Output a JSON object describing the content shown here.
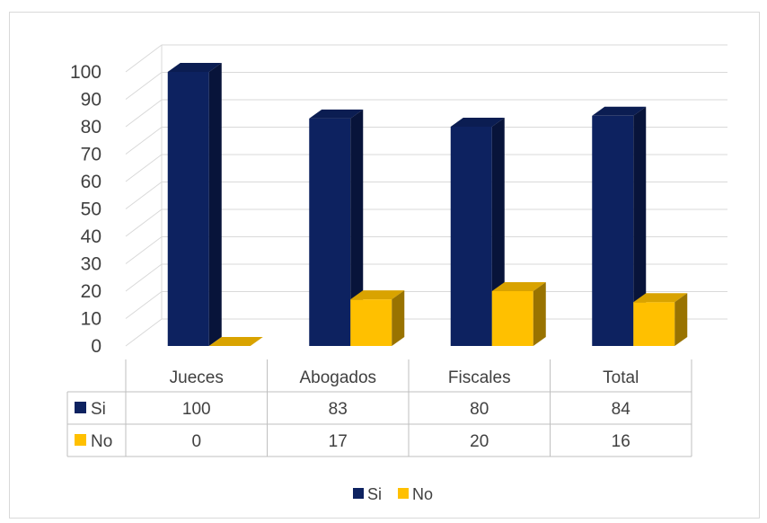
{
  "chart_data": {
    "type": "bar",
    "categories": [
      "Jueces",
      "Abogados",
      "Fiscales",
      "Total"
    ],
    "series": [
      {
        "name": "Si",
        "values": [
          100,
          83,
          80,
          84
        ],
        "color": "#0d2260"
      },
      {
        "name": "No",
        "values": [
          0,
          17,
          20,
          16
        ],
        "color": "#ffc000"
      }
    ],
    "ylim": [
      0,
      100
    ],
    "yticks": [
      0,
      10,
      20,
      30,
      40,
      50,
      60,
      70,
      80,
      90,
      100
    ],
    "grid": true,
    "three_d": true,
    "data_table": true,
    "legend_position": "bottom"
  }
}
